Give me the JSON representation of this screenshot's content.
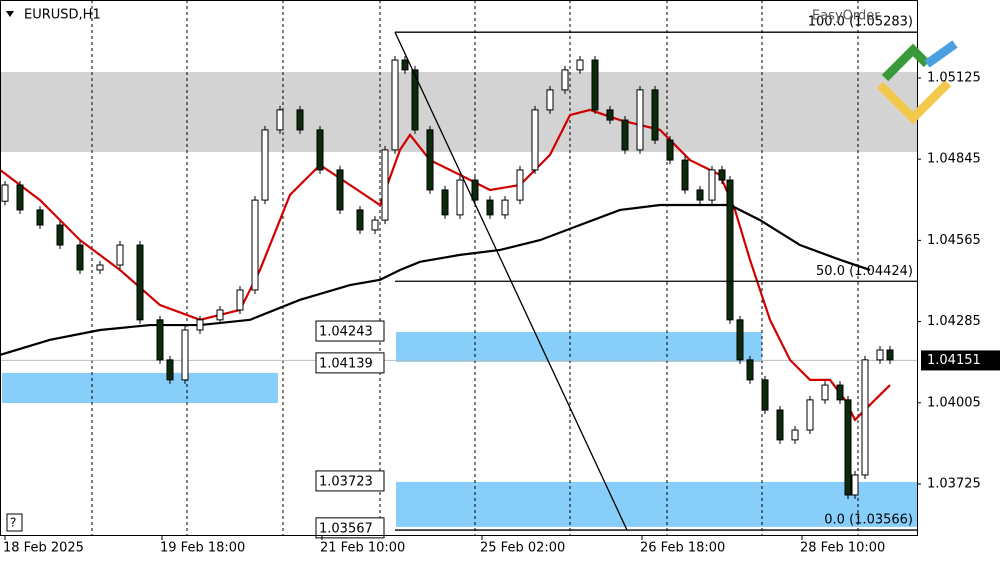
{
  "chart_data": {
    "type": "candlestick",
    "symbol": "EURUSD,H1",
    "panel_label": "EasyOrder",
    "xlim": [
      0,
      229.25
    ],
    "ylim": [
      1.03549,
      1.05394
    ],
    "yticks": [
      1.05125,
      1.04845,
      1.04565,
      1.04285,
      1.04005,
      1.03725
    ],
    "xticks": [
      {
        "value": 1.25,
        "label": "18 Feb 2025"
      },
      {
        "value": 40.5,
        "label": "19 Feb 18:00"
      },
      {
        "value": 80.5,
        "label": "21 Feb 10:00"
      },
      {
        "value": 120.5,
        "label": "25 Feb 02:00"
      },
      {
        "value": 160.5,
        "label": "26 Feb 18:00"
      },
      {
        "value": 200.5,
        "label": "28 Feb 10:00"
      }
    ],
    "xgrid": [
      23,
      46.75,
      70.75,
      95,
      118.75,
      142.5,
      166.75,
      190.5,
      214.5
    ],
    "up_color": "#ffffff",
    "down_color": "#0c2a0c",
    "x": [
      1.25,
      5,
      10,
      15,
      20,
      25,
      30,
      35,
      40,
      42.5,
      46.25,
      50,
      55,
      60,
      63.75,
      66.25,
      70,
      75,
      80,
      85,
      90,
      93.75,
      96.25,
      98.75,
      101.25,
      103.75,
      107.5,
      111.25,
      115,
      118.75,
      122.5,
      126.25,
      130,
      133.75,
      137.5,
      141.25,
      145,
      148.75,
      152.5,
      156.25,
      160,
      163.75,
      167.5,
      171.25,
      175,
      178,
      180.5,
      182.5,
      185,
      187.5,
      191.25,
      195,
      198.75,
      202.5,
      206.25,
      210,
      212,
      213.75,
      216.25,
      220,
      222.5
    ],
    "open": [
      1.047,
      1.04756,
      1.0467,
      1.04618,
      1.04549,
      1.04463,
      1.0448,
      1.04549,
      1.04291,
      1.04153,
      1.04084,
      1.04256,
      1.04291,
      1.04325,
      1.04394,
      1.04704,
      1.04946,
      1.05015,
      1.04946,
      1.04808,
      1.0467,
      1.04601,
      1.04635,
      1.04877,
      1.05187,
      1.05153,
      1.04946,
      1.04739,
      1.04653,
      1.04773,
      1.04704,
      1.04653,
      1.04704,
      1.04808,
      1.05015,
      1.05084,
      1.05153,
      1.05187,
      1.05015,
      1.0498,
      1.04877,
      1.05084,
      1.04911,
      1.04842,
      1.04739,
      1.04704,
      1.04808,
      1.04773,
      1.04291,
      1.04153,
      1.04084,
      1.0398,
      1.03877,
      1.03911,
      1.04015,
      1.04066,
      1.04015,
      1.03687,
      1.03756,
      1.04153,
      1.04187
    ],
    "close": [
      1.04756,
      1.0467,
      1.04618,
      1.04549,
      1.04463,
      1.0448,
      1.04549,
      1.04291,
      1.04153,
      1.04084,
      1.04256,
      1.04291,
      1.04325,
      1.04394,
      1.04704,
      1.04946,
      1.05015,
      1.04946,
      1.04808,
      1.0467,
      1.04601,
      1.04635,
      1.04877,
      1.05187,
      1.05153,
      1.04946,
      1.04739,
      1.04653,
      1.04773,
      1.04704,
      1.04653,
      1.04704,
      1.04808,
      1.05015,
      1.05084,
      1.05153,
      1.05187,
      1.05015,
      1.0498,
      1.04877,
      1.05084,
      1.04911,
      1.04842,
      1.04739,
      1.04704,
      1.04808,
      1.04773,
      1.04291,
      1.04153,
      1.04084,
      1.0398,
      1.03877,
      1.03911,
      1.04015,
      1.04066,
      1.04015,
      1.03687,
      1.03756,
      1.04153,
      1.04187,
      1.04153
    ],
    "lines": [
      {
        "color": "#d00000",
        "x": [
          0,
          10,
          20,
          30,
          40,
          50,
          60,
          65,
          72.5,
          80,
          87.5,
          95,
          100,
          102.5,
          107.5,
          115,
          122.5,
          130,
          137.5,
          142.5,
          147.5,
          155,
          160,
          165,
          172.5,
          180,
          183.75,
          187.5,
          192.5,
          197.5,
          202.5,
          207.5,
          211.25,
          213.75,
          217.5,
          222.5
        ],
        "values": [
          1.04808,
          1.04704,
          1.04566,
          1.04463,
          1.04342,
          1.04291,
          1.04325,
          1.04463,
          1.04722,
          1.04825,
          1.04756,
          1.04687,
          1.04877,
          1.04929,
          1.04842,
          1.04791,
          1.04739,
          1.04756,
          1.0486,
          1.04997,
          1.05015,
          1.0498,
          1.04963,
          1.04946,
          1.04842,
          1.04791,
          1.0467,
          1.04498,
          1.04291,
          1.04153,
          1.04084,
          1.04084,
          1.04015,
          1.03946,
          1.03998,
          1.04066
        ]
      },
      {
        "color": "#000000",
        "x": [
          0,
          12.5,
          25,
          37.5,
          50,
          62.5,
          75,
          87.5,
          95,
          100,
          105,
          115,
          125,
          135,
          145,
          155,
          165,
          175,
          182.5,
          190,
          200,
          210,
          217.5
        ],
        "values": [
          1.0417,
          1.04222,
          1.04256,
          1.04273,
          1.04273,
          1.04291,
          1.0436,
          1.04411,
          1.04429,
          1.04463,
          1.04491,
          1.04515,
          1.04532,
          1.04566,
          1.04618,
          1.0467,
          1.04687,
          1.04687,
          1.04687,
          1.04635,
          1.04549,
          1.04498,
          1.04463
        ]
      }
    ],
    "zones": [
      {
        "color": "#d3d3d3",
        "x": [
          0,
          229.25
        ],
        "y": [
          1.05146,
          1.0487
        ]
      },
      {
        "color": "#87cefa",
        "x": [
          0.5,
          69.5
        ],
        "y": [
          1.04108,
          1.04004
        ]
      },
      {
        "color": "#87cefa",
        "x": [
          99,
          190.5
        ],
        "y": [
          1.04249,
          1.04146
        ],
        "labels": [
          1.04243,
          1.04139
        ]
      },
      {
        "color": "#87cefa",
        "x": [
          99,
          229.25
        ],
        "y": [
          1.03732,
          1.03577
        ],
        "labels": [
          1.03723,
          1.03567
        ]
      }
    ],
    "fib": {
      "x": [
        98.75,
        229.25
      ],
      "levels": [
        1.05283,
        1.04424,
        1.03566
      ],
      "labels": [
        "100.0 (1.05283)",
        "50.0 (1.04424)",
        "0.0 (1.03566)"
      ],
      "trend_end_x": 156.75
    },
    "last_price": 1.04151
  }
}
